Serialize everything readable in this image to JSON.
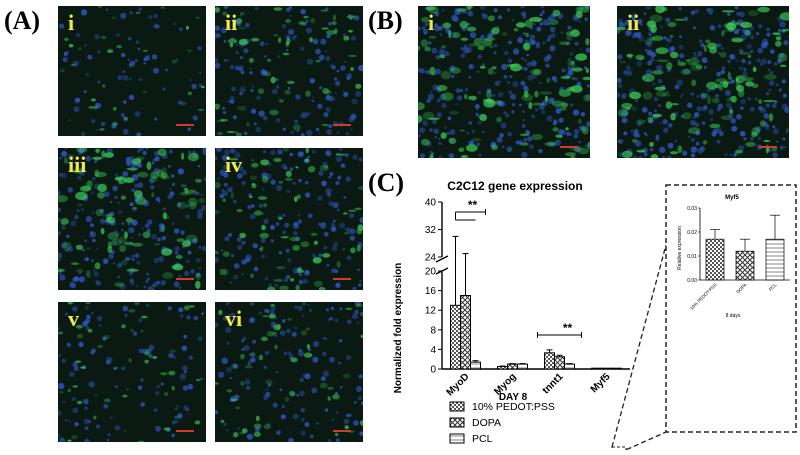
{
  "panels": {
    "A": "(A)",
    "B": "(B)",
    "C": "(C)"
  },
  "micrographs": {
    "A": [
      {
        "label": "i",
        "density": 0.35
      },
      {
        "label": "ii",
        "density": 0.65
      },
      {
        "label": "iii",
        "density": 0.95
      },
      {
        "label": "iv",
        "density": 0.7
      },
      {
        "label": "v",
        "density": 0.45
      },
      {
        "label": "vi",
        "density": 0.55
      }
    ],
    "B": [
      {
        "label": "i",
        "density": 1.0
      },
      {
        "label": "ii",
        "density": 1.0
      }
    ],
    "colors": {
      "background": "#0a1a12",
      "nuclei": "#2f57c4",
      "signal": "#3ecf5a",
      "label": "#f2ea4a",
      "scalebar": "#d23a2a"
    }
  },
  "chart_data": [
    {
      "type": "bar",
      "title": "C2C12 gene expression",
      "xlabel": "DAY 8",
      "ylabel": "Normalized fold expression",
      "categories": [
        "MyoD",
        "Myog",
        "tnnt1",
        "Myf5"
      ],
      "series": [
        {
          "name": "10% PEDOT:PSS",
          "values": [
            13.0,
            0.5,
            3.3,
            0.017
          ],
          "errors": [
            17.0,
            0.1,
            0.6,
            0.004
          ]
        },
        {
          "name": "DOPA",
          "values": [
            15.0,
            1.0,
            2.5,
            0.012
          ],
          "errors": [
            10.0,
            0.1,
            0.3,
            0.005
          ]
        },
        {
          "name": "PCL",
          "values": [
            1.4,
            1.0,
            1.0,
            0.017
          ],
          "errors": [
            0.3,
            0.1,
            0.1,
            0.01
          ]
        }
      ],
      "yticks_lower": [
        0,
        4,
        8,
        12,
        16,
        20
      ],
      "yticks_upper": [
        24,
        32,
        40
      ],
      "axis_break": [
        20,
        24
      ],
      "significance": [
        {
          "category": "MyoD",
          "label": "**"
        },
        {
          "category": "tnnt1",
          "label": "**"
        }
      ],
      "patterns": [
        "checker",
        "crosshatch",
        "lines"
      ]
    },
    {
      "type": "bar",
      "title": "Myf5",
      "xlabel": "8 days",
      "ylabel": "Relative expression",
      "categories": [
        "10% PEDOT:PSS",
        "DOPA",
        "PCL"
      ],
      "values": [
        0.017,
        0.012,
        0.017
      ],
      "errors": [
        0.004,
        0.005,
        0.01
      ],
      "yticks": [
        "0.00",
        "0.01",
        "0.02",
        "0.03"
      ],
      "ylim": [
        0,
        0.03
      ]
    }
  ]
}
